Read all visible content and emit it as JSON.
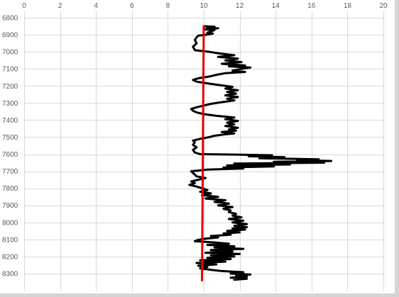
{
  "chart_data": {
    "type": "line",
    "title": "",
    "xlabel": "",
    "ylabel": "",
    "xlim": [
      0,
      20
    ],
    "ylim": [
      6800,
      8350
    ],
    "y_reversed": true,
    "x_axis_position": "top",
    "grid": true,
    "xticks": [
      "0",
      "2",
      "4",
      "6",
      "8",
      "10",
      "12",
      "14",
      "16",
      "18",
      "20"
    ],
    "yticks": [
      "6800",
      "6900",
      "7000",
      "7100",
      "7200",
      "7300",
      "7400",
      "7500",
      "7600",
      "7700",
      "7800",
      "7900",
      "8000",
      "8100",
      "8200",
      "8300"
    ],
    "colors": {
      "grid": "#d9d9d9",
      "series_log": "#000000",
      "series_reference": "#e60000",
      "tick_text": "#595959",
      "plot_background": "#ffffff",
      "shadow": "#d4d4d4"
    },
    "series": [
      {
        "type": "log",
        "points": [
          [
            10.0,
            6850
          ],
          [
            10.6,
            6853
          ],
          [
            10.2,
            6858
          ],
          [
            10.8,
            6862
          ],
          [
            10.0,
            6868
          ],
          [
            10.6,
            6872
          ],
          [
            10.4,
            6880
          ],
          [
            10.2,
            6888
          ],
          [
            10.5,
            6893
          ],
          [
            10.1,
            6900
          ],
          [
            9.7,
            6905
          ],
          [
            9.6,
            6915
          ],
          [
            9.5,
            6930
          ],
          [
            9.6,
            6950
          ],
          [
            9.4,
            6970
          ],
          [
            9.5,
            6990
          ],
          [
            10.3,
            7000
          ],
          [
            10.9,
            7010
          ],
          [
            11.7,
            7020
          ],
          [
            10.8,
            7030
          ],
          [
            11.9,
            7040
          ],
          [
            11.2,
            7050
          ],
          [
            12.1,
            7060
          ],
          [
            11.0,
            7070
          ],
          [
            12.3,
            7080
          ],
          [
            11.4,
            7085
          ],
          [
            12.6,
            7092
          ],
          [
            12.1,
            7100
          ],
          [
            11.6,
            7110
          ],
          [
            12.3,
            7118
          ],
          [
            11.2,
            7125
          ],
          [
            10.7,
            7135
          ],
          [
            10.3,
            7145
          ],
          [
            9.7,
            7155
          ],
          [
            9.4,
            7165
          ],
          [
            9.6,
            7175
          ],
          [
            10.2,
            7185
          ],
          [
            10.9,
            7195
          ],
          [
            11.6,
            7205
          ],
          [
            11.2,
            7215
          ],
          [
            11.9,
            7225
          ],
          [
            11.3,
            7235
          ],
          [
            11.8,
            7245
          ],
          [
            11.2,
            7255
          ],
          [
            11.9,
            7265
          ],
          [
            11.3,
            7275
          ],
          [
            11.7,
            7285
          ],
          [
            11.0,
            7295
          ],
          [
            10.4,
            7305
          ],
          [
            10.0,
            7315
          ],
          [
            9.6,
            7325
          ],
          [
            9.3,
            7335
          ],
          [
            9.4,
            7345
          ],
          [
            9.6,
            7355
          ],
          [
            10.0,
            7365
          ],
          [
            10.7,
            7375
          ],
          [
            11.7,
            7385
          ],
          [
            11.2,
            7395
          ],
          [
            11.9,
            7405
          ],
          [
            11.3,
            7415
          ],
          [
            11.7,
            7425
          ],
          [
            11.2,
            7435
          ],
          [
            11.9,
            7445
          ],
          [
            11.4,
            7455
          ],
          [
            11.8,
            7462
          ],
          [
            11.0,
            7470
          ],
          [
            11.7,
            7478
          ],
          [
            11.1,
            7485
          ],
          [
            10.6,
            7492
          ],
          [
            10.3,
            7500
          ],
          [
            9.8,
            7510
          ],
          [
            9.4,
            7520
          ],
          [
            9.5,
            7530
          ],
          [
            9.4,
            7545
          ],
          [
            9.6,
            7560
          ],
          [
            9.4,
            7575
          ],
          [
            9.5,
            7590
          ],
          [
            9.8,
            7600
          ],
          [
            11.5,
            7602
          ],
          [
            13.8,
            7606
          ],
          [
            12.5,
            7612
          ],
          [
            14.5,
            7618
          ],
          [
            13.1,
            7624
          ],
          [
            16.4,
            7630
          ],
          [
            15.2,
            7635
          ],
          [
            17.1,
            7640
          ],
          [
            13.9,
            7645
          ],
          [
            16.7,
            7650
          ],
          [
            11.7,
            7655
          ],
          [
            14.8,
            7660
          ],
          [
            11.3,
            7666
          ],
          [
            13.9,
            7672
          ],
          [
            11.1,
            7678
          ],
          [
            12.2,
            7684
          ],
          [
            10.2,
            7690
          ],
          [
            9.3,
            7700
          ],
          [
            9.4,
            7710
          ],
          [
            9.5,
            7720
          ],
          [
            9.6,
            7730
          ],
          [
            10.1,
            7740
          ],
          [
            9.7,
            7750
          ],
          [
            9.3,
            7760
          ],
          [
            9.5,
            7770
          ],
          [
            9.2,
            7780
          ],
          [
            9.6,
            7790
          ],
          [
            9.9,
            7800
          ],
          [
            10.2,
            7810
          ],
          [
            9.8,
            7820
          ],
          [
            10.4,
            7830
          ],
          [
            9.9,
            7840
          ],
          [
            10.8,
            7850
          ],
          [
            10.1,
            7860
          ],
          [
            11.2,
            7870
          ],
          [
            10.6,
            7880
          ],
          [
            11.4,
            7890
          ],
          [
            10.8,
            7900
          ],
          [
            11.6,
            7910
          ],
          [
            11.1,
            7920
          ],
          [
            11.5,
            7930
          ],
          [
            11.4,
            7940
          ],
          [
            11.8,
            7950
          ],
          [
            11.6,
            7960
          ],
          [
            12.1,
            7970
          ],
          [
            11.4,
            7980
          ],
          [
            12.2,
            7990
          ],
          [
            11.6,
            8000
          ],
          [
            12.4,
            8010
          ],
          [
            11.7,
            8020
          ],
          [
            12.4,
            8028
          ],
          [
            11.6,
            8035
          ],
          [
            12.3,
            8042
          ],
          [
            11.3,
            8050
          ],
          [
            12.0,
            8058
          ],
          [
            11.1,
            8065
          ],
          [
            11.5,
            8072
          ],
          [
            10.4,
            8080
          ],
          [
            10.8,
            8088
          ],
          [
            10.1,
            8095
          ],
          [
            9.7,
            8102
          ],
          [
            9.5,
            8110
          ],
          [
            10.7,
            8118
          ],
          [
            11.4,
            8125
          ],
          [
            10.2,
            8132
          ],
          [
            11.7,
            8140
          ],
          [
            10.6,
            8147
          ],
          [
            12.2,
            8155
          ],
          [
            10.4,
            8162
          ],
          [
            11.6,
            8170
          ],
          [
            10.1,
            8178
          ],
          [
            12.0,
            8185
          ],
          [
            10.4,
            8193
          ],
          [
            11.7,
            8200
          ],
          [
            10.2,
            8208
          ],
          [
            11.5,
            8215
          ],
          [
            9.8,
            8222
          ],
          [
            11.2,
            8230
          ],
          [
            9.6,
            8238
          ],
          [
            10.7,
            8246
          ],
          [
            9.7,
            8254
          ],
          [
            10.2,
            8262
          ],
          [
            9.8,
            8270
          ],
          [
            10.4,
            8278
          ],
          [
            11.0,
            8285
          ],
          [
            12.2,
            8292
          ],
          [
            11.5,
            8300
          ],
          [
            12.6,
            8305
          ],
          [
            11.8,
            8312
          ],
          [
            12.4,
            8318
          ],
          [
            11.5,
            8324
          ],
          [
            12.4,
            8330
          ],
          [
            11.7,
            8336
          ]
        ]
      },
      {
        "type": "reference-line",
        "points": [
          [
            10.0,
            6845
          ],
          [
            9.9,
            8345
          ]
        ]
      }
    ]
  }
}
